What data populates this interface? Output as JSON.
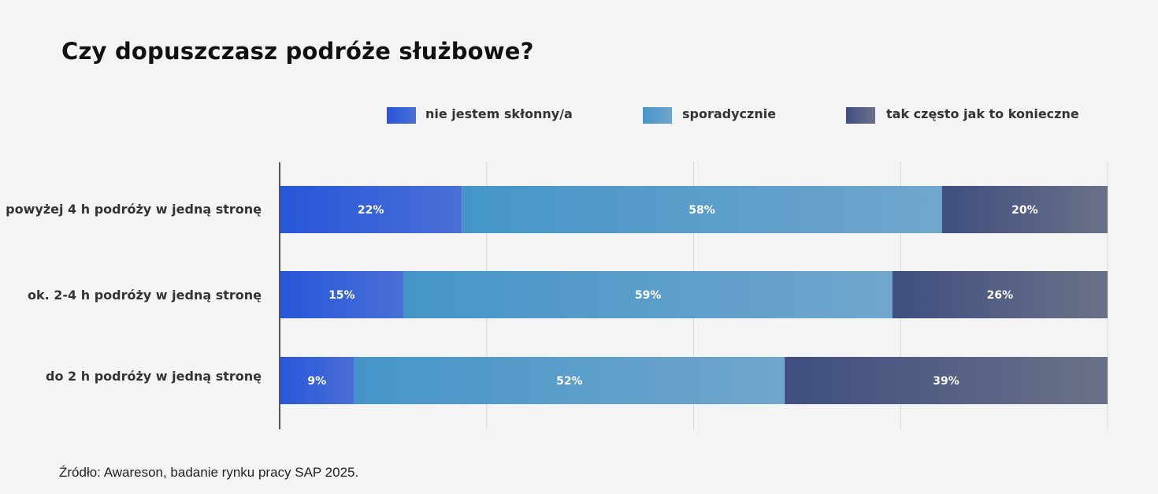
{
  "title": "Czy dopuszczasz podróże służbowe?",
  "source": "Źródło: Awareson, badanie rynku pracy SAP 2025.",
  "colors": {
    "nie_start": "#2656d9",
    "nie_end": "#4a6fd6",
    "spor_start": "#4595c9",
    "spor_end": "#70a6cc",
    "tak_start": "#3f4e80",
    "tak_end": "#6b7187",
    "grid": "#d6d6d6",
    "axis": "#555555"
  },
  "chart_data": {
    "type": "bar",
    "orientation": "horizontal",
    "stacked": true,
    "categories": [
      "powyżej 4 h podróży w jedną stronę",
      "ok. 2-4 h podróży w jedną stronę",
      "do 2 h podróży w jedną stronę"
    ],
    "series": [
      {
        "name": "nie jestem skłonny/a",
        "values": [
          22,
          15,
          9
        ],
        "labels": [
          "22%",
          "15%",
          "9%"
        ],
        "color": "#2656d9"
      },
      {
        "name": "sporadycznie",
        "values": [
          58,
          59,
          52
        ],
        "labels": [
          "58%",
          "59%",
          "52%"
        ],
        "color": "#4f9acb"
      },
      {
        "name": "tak często jak to konieczne",
        "values": [
          20,
          26,
          39
        ],
        "labels": [
          "20%",
          "26%",
          "39%"
        ],
        "color": "#4a5a86"
      }
    ],
    "xlim": [
      0,
      100
    ],
    "grid": true,
    "legend": "top"
  }
}
